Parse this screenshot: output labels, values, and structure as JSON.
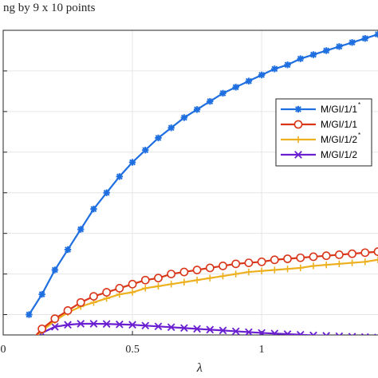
{
  "header_fragment": "ng by 9 x  10 points",
  "chart_data": {
    "type": "line",
    "xlabel": "λ",
    "ylabel": "",
    "xlim": [
      0,
      1.45
    ],
    "ylim": [
      0.3,
      1.8
    ],
    "xticks": [
      0,
      0.5,
      1
    ],
    "xtick_labels": [
      "0",
      "0.5",
      "1"
    ],
    "yticks": [
      0.4,
      0.6,
      0.8,
      1.0,
      1.2,
      1.4,
      1.6
    ],
    "grid": true,
    "legend_position": "right",
    "x": [
      0.1,
      0.15,
      0.2,
      0.25,
      0.3,
      0.35,
      0.4,
      0.45,
      0.5,
      0.55,
      0.6,
      0.65,
      0.7,
      0.75,
      0.8,
      0.85,
      0.9,
      0.95,
      1.0,
      1.05,
      1.1,
      1.15,
      1.2,
      1.25,
      1.3,
      1.35,
      1.4,
      1.45
    ],
    "series": [
      {
        "name": "M/GI/1/1",
        "sup": "*",
        "color": "#1f6fe0",
        "marker": "asterisk",
        "values": [
          0.4,
          0.5,
          0.62,
          0.72,
          0.82,
          0.92,
          1.0,
          1.08,
          1.15,
          1.21,
          1.27,
          1.32,
          1.37,
          1.41,
          1.45,
          1.49,
          1.52,
          1.55,
          1.58,
          1.61,
          1.63,
          1.66,
          1.68,
          1.7,
          1.72,
          1.74,
          1.76,
          1.78
        ]
      },
      {
        "name": "M/GI/1/1",
        "sup": "",
        "color": "#d9361a",
        "marker": "circle",
        "values": [
          0.26,
          0.33,
          0.38,
          0.42,
          0.46,
          0.49,
          0.51,
          0.53,
          0.55,
          0.57,
          0.58,
          0.6,
          0.61,
          0.62,
          0.63,
          0.64,
          0.65,
          0.655,
          0.66,
          0.67,
          0.675,
          0.68,
          0.685,
          0.69,
          0.695,
          0.7,
          0.705,
          0.71
        ]
      },
      {
        "name": "M/GI/1/2",
        "sup": "*",
        "color": "#edb120",
        "marker": "plus",
        "values": [
          0.26,
          0.32,
          0.37,
          0.41,
          0.44,
          0.46,
          0.48,
          0.5,
          0.51,
          0.53,
          0.54,
          0.55,
          0.56,
          0.57,
          0.58,
          0.59,
          0.6,
          0.61,
          0.615,
          0.62,
          0.625,
          0.63,
          0.64,
          0.645,
          0.65,
          0.655,
          0.66,
          0.67
        ]
      },
      {
        "name": "M/GI/1/2",
        "sup": "",
        "color": "#6a1fd1",
        "marker": "x",
        "values": [
          0.26,
          0.31,
          0.34,
          0.35,
          0.355,
          0.355,
          0.354,
          0.352,
          0.35,
          0.346,
          0.342,
          0.338,
          0.334,
          0.33,
          0.326,
          0.322,
          0.318,
          0.314,
          0.31,
          0.307,
          0.304,
          0.301,
          0.298,
          0.296,
          0.294,
          0.292,
          0.29,
          0.288
        ]
      }
    ]
  }
}
